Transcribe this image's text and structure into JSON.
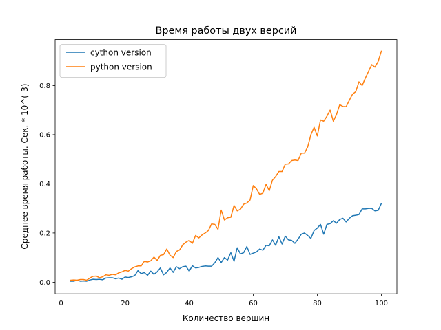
{
  "chart_data": {
    "type": "line",
    "title": "Время работы двух версий",
    "xlabel": "Количество вершин",
    "ylabel": "Среднее время работы. Сек. * 10^(-3)",
    "xlim": [
      -1.85,
      104.85
    ],
    "ylim": [
      -0.047,
      0.987
    ],
    "xticks": [
      0,
      20,
      40,
      60,
      80,
      100
    ],
    "xtick_labels": [
      "0",
      "20",
      "40",
      "60",
      "80",
      "100"
    ],
    "yticks": [
      0.0,
      0.2,
      0.4,
      0.6,
      0.8
    ],
    "ytick_labels": [
      "0.0",
      "0.2",
      "0.4",
      "0.6",
      "0.8"
    ],
    "grid": false,
    "legend": {
      "position": "top-left"
    },
    "series": [
      {
        "name": "cython version",
        "color": "#1f77b4",
        "x": [
          3,
          4,
          5,
          6,
          7,
          8,
          9,
          10,
          11,
          12,
          13,
          14,
          15,
          16,
          17,
          18,
          19,
          20,
          21,
          22,
          23,
          24,
          25,
          26,
          27,
          28,
          29,
          30,
          31,
          32,
          33,
          34,
          35,
          36,
          37,
          38,
          39,
          40,
          41,
          42,
          43,
          44,
          45,
          46,
          47,
          48,
          49,
          50,
          51,
          52,
          53,
          54,
          55,
          56,
          57,
          58,
          59,
          60,
          61,
          62,
          63,
          64,
          65,
          66,
          67,
          68,
          69,
          70,
          71,
          72,
          73,
          74,
          75,
          76,
          77,
          78,
          79,
          80,
          81,
          82,
          83,
          84,
          85,
          86,
          87,
          88,
          89,
          90,
          91,
          92,
          93,
          94,
          95,
          96,
          97,
          98,
          99,
          100
        ],
        "values": [
          0.004,
          0.004,
          0.008,
          0.004,
          0.005,
          0.004,
          0.009,
          0.012,
          0.011,
          0.012,
          0.01,
          0.017,
          0.018,
          0.018,
          0.014,
          0.017,
          0.012,
          0.021,
          0.019,
          0.022,
          0.027,
          0.047,
          0.035,
          0.039,
          0.028,
          0.045,
          0.032,
          0.042,
          0.058,
          0.03,
          0.04,
          0.058,
          0.04,
          0.063,
          0.055,
          0.063,
          0.065,
          0.045,
          0.067,
          0.058,
          0.06,
          0.064,
          0.066,
          0.065,
          0.065,
          0.079,
          0.1,
          0.08,
          0.1,
          0.09,
          0.12,
          0.085,
          0.14,
          0.115,
          0.12,
          0.145,
          0.113,
          0.118,
          0.123,
          0.135,
          0.13,
          0.15,
          0.148,
          0.172,
          0.15,
          0.185,
          0.155,
          0.187,
          0.172,
          0.17,
          0.158,
          0.175,
          0.195,
          0.2,
          0.19,
          0.178,
          0.21,
          0.22,
          0.235,
          0.195,
          0.235,
          0.238,
          0.25,
          0.24,
          0.255,
          0.26,
          0.245,
          0.26,
          0.27,
          0.272,
          0.275,
          0.298,
          0.298,
          0.3,
          0.3,
          0.29,
          0.292,
          0.32
        ]
      },
      {
        "name": "python version",
        "color": "#ff7f0e",
        "x": [
          3,
          4,
          5,
          6,
          7,
          8,
          9,
          10,
          11,
          12,
          13,
          14,
          15,
          16,
          17,
          18,
          19,
          20,
          21,
          22,
          23,
          24,
          25,
          26,
          27,
          28,
          29,
          30,
          31,
          32,
          33,
          34,
          35,
          36,
          37,
          38,
          39,
          40,
          41,
          42,
          43,
          44,
          45,
          46,
          47,
          48,
          49,
          50,
          51,
          52,
          53,
          54,
          55,
          56,
          57,
          58,
          59,
          60,
          61,
          62,
          63,
          64,
          65,
          66,
          67,
          68,
          69,
          70,
          71,
          72,
          73,
          74,
          75,
          76,
          77,
          78,
          79,
          80,
          81,
          82,
          83,
          84,
          85,
          86,
          87,
          88,
          89,
          90,
          91,
          92,
          93,
          94,
          95,
          96,
          97,
          98,
          99,
          100
        ],
        "values": [
          0.008,
          0.009,
          0.008,
          0.011,
          0.011,
          0.008,
          0.017,
          0.024,
          0.025,
          0.018,
          0.022,
          0.03,
          0.028,
          0.032,
          0.03,
          0.038,
          0.042,
          0.048,
          0.045,
          0.055,
          0.062,
          0.066,
          0.066,
          0.085,
          0.082,
          0.087,
          0.102,
          0.088,
          0.109,
          0.112,
          0.135,
          0.11,
          0.1,
          0.125,
          0.131,
          0.152,
          0.163,
          0.17,
          0.158,
          0.19,
          0.18,
          0.192,
          0.2,
          0.21,
          0.237,
          0.235,
          0.215,
          0.293,
          0.253,
          0.262,
          0.264,
          0.312,
          0.29,
          0.297,
          0.317,
          0.322,
          0.334,
          0.393,
          0.38,
          0.357,
          0.362,
          0.398,
          0.372,
          0.415,
          0.43,
          0.45,
          0.45,
          0.48,
          0.481,
          0.495,
          0.497,
          0.495,
          0.525,
          0.525,
          0.55,
          0.6,
          0.63,
          0.595,
          0.66,
          0.655,
          0.675,
          0.7,
          0.655,
          0.682,
          0.722,
          0.715,
          0.714,
          0.74,
          0.765,
          0.775,
          0.815,
          0.8,
          0.83,
          0.858,
          0.885,
          0.875,
          0.898,
          0.94
        ]
      }
    ]
  }
}
